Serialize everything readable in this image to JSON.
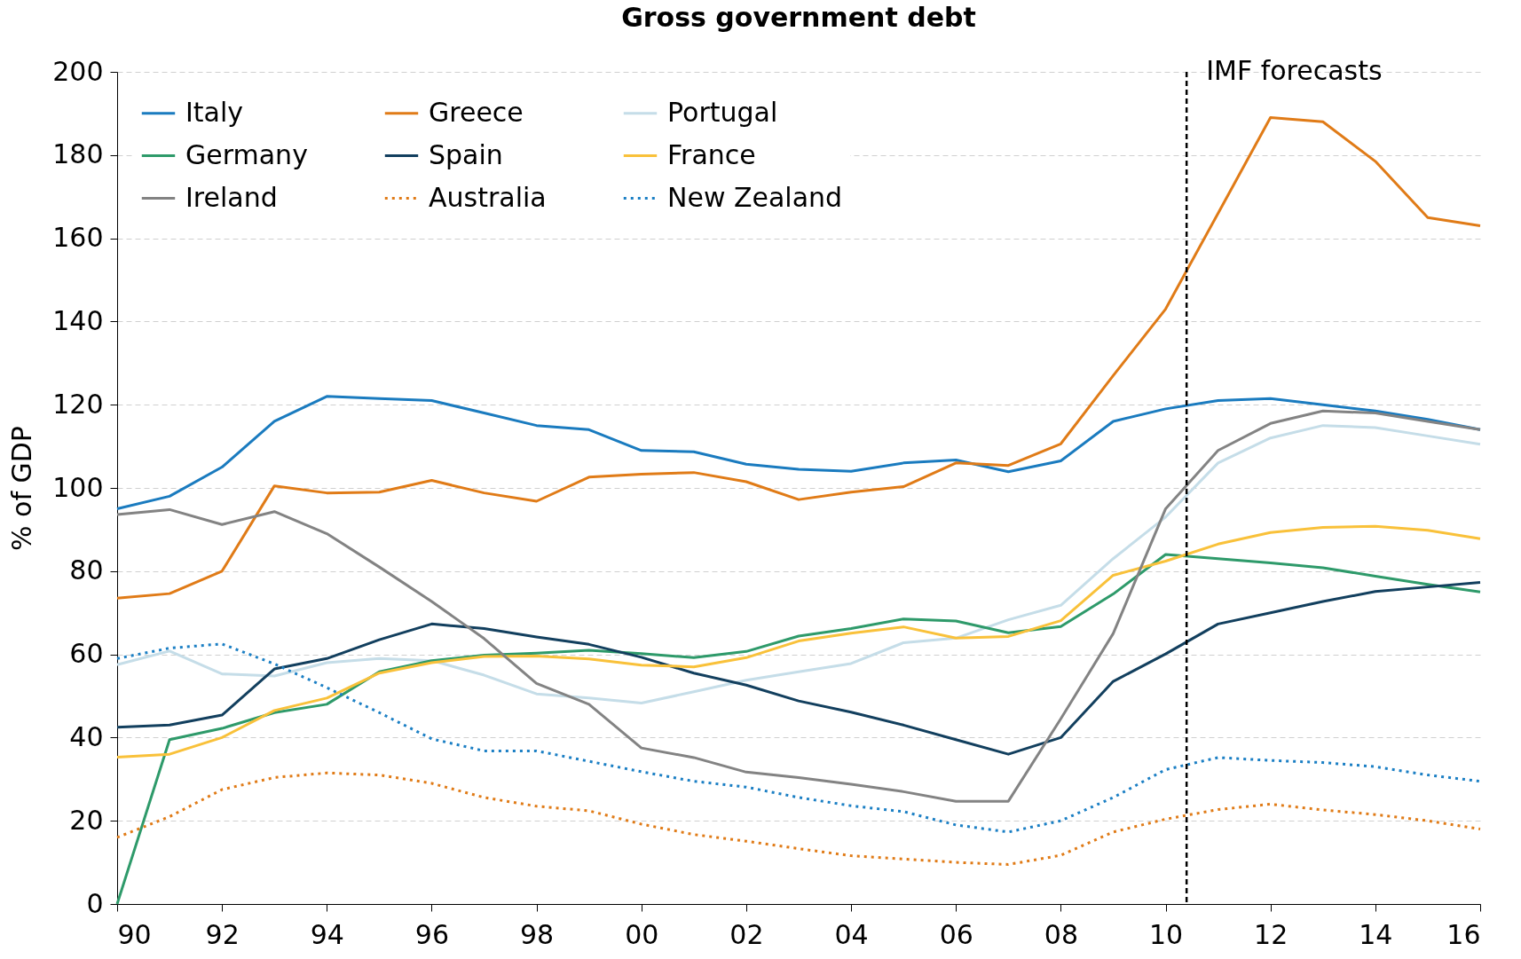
{
  "chart_data": {
    "type": "line",
    "title": "Gross government debt",
    "ylabel": "% of GDP",
    "x": [
      1990,
      1991,
      1992,
      1993,
      1994,
      1995,
      1996,
      1997,
      1998,
      1999,
      2000,
      2001,
      2002,
      2003,
      2004,
      2005,
      2006,
      2007,
      2008,
      2009,
      2010,
      2011,
      2012,
      2013,
      2014,
      2015,
      2016
    ],
    "xlim": [
      1990,
      2016
    ],
    "xticks": [
      {
        "value": 1990,
        "label": "90"
      },
      {
        "value": 1992,
        "label": "92"
      },
      {
        "value": 1994,
        "label": "94"
      },
      {
        "value": 1996,
        "label": "96"
      },
      {
        "value": 1998,
        "label": "98"
      },
      {
        "value": 2000,
        "label": "00"
      },
      {
        "value": 2002,
        "label": "02"
      },
      {
        "value": 2004,
        "label": "04"
      },
      {
        "value": 2006,
        "label": "06"
      },
      {
        "value": 2008,
        "label": "08"
      },
      {
        "value": 2010,
        "label": "10"
      },
      {
        "value": 2012,
        "label": "12"
      },
      {
        "value": 2014,
        "label": "14"
      },
      {
        "value": 2016,
        "label": "16"
      }
    ],
    "ylim": [
      0,
      200
    ],
    "yticks": [
      0,
      20,
      40,
      60,
      80,
      100,
      120,
      140,
      160,
      180,
      200
    ],
    "grid": "y",
    "legend": "top left",
    "line_style": "solid",
    "ref_lines": [
      {
        "axis": "x",
        "value": 2010.4,
        "label": "IMF forecasts",
        "color": "#000000",
        "line_style": "dashed"
      }
    ],
    "series": [
      {
        "name": "Italy",
        "color": "#1a7bbf",
        "values": [
          95,
          98,
          105,
          116,
          122,
          121.5,
          121,
          118,
          115,
          114,
          109,
          108.7,
          105.7,
          104.5,
          104,
          106,
          106.7,
          103.9,
          106.5,
          116,
          119,
          121,
          121.5,
          120,
          118.5,
          116.5,
          114
        ]
      },
      {
        "name": "Greece",
        "color": "#e07b17",
        "values": [
          73.5,
          74.6,
          80,
          100.5,
          98.8,
          99,
          101.8,
          98.8,
          96.8,
          102.6,
          103.3,
          103.7,
          101.5,
          97.2,
          99,
          100.3,
          106,
          105.4,
          110.6,
          127,
          143,
          166,
          189,
          188,
          178.5,
          165,
          163
        ]
      },
      {
        "name": "Portugal",
        "color": "#c5dde8",
        "values": [
          57.5,
          60.8,
          55.3,
          54.8,
          58,
          59,
          58.5,
          55,
          50.5,
          49.5,
          48.3,
          51,
          53.8,
          55.8,
          57.8,
          62.8,
          63.9,
          68.3,
          71.8,
          83,
          93,
          106,
          112,
          115,
          114.5,
          112.5,
          110.5
        ]
      },
      {
        "name": "Germany",
        "color": "#2e9a6a",
        "values": [
          0,
          39.5,
          42.2,
          46,
          48,
          55.8,
          58.5,
          59.8,
          60.3,
          61,
          60.2,
          59.2,
          60.7,
          64.4,
          66.2,
          68.5,
          68,
          65.2,
          66.7,
          74.5,
          84,
          83,
          82,
          80.8,
          78.8,
          76.8,
          75
        ]
      },
      {
        "name": "Spain",
        "color": "#123f5e",
        "values": [
          42.5,
          43,
          45.4,
          56.5,
          59,
          63.5,
          67.3,
          66.2,
          64.2,
          62.4,
          59.3,
          55.5,
          52.6,
          48.8,
          46.1,
          43,
          39.5,
          36,
          40,
          53.5,
          60.1,
          67.3,
          70,
          72.7,
          75.1,
          76.2,
          77.3
        ]
      },
      {
        "name": "France",
        "color": "#f9c13a",
        "values": [
          35.3,
          36,
          40,
          46.5,
          49.5,
          55.5,
          58,
          59.5,
          59.6,
          58.9,
          57.4,
          57,
          59.2,
          63.2,
          65.1,
          66.6,
          63.9,
          64.3,
          68.1,
          79,
          82.4,
          86.5,
          89.3,
          90.5,
          90.8,
          89.8,
          87.8
        ]
      },
      {
        "name": "Ireland",
        "color": "#838383",
        "values": [
          93.6,
          94.8,
          91.2,
          94.3,
          89,
          81,
          72.7,
          63.8,
          53,
          48,
          37.5,
          35.2,
          31.7,
          30.4,
          28.8,
          27,
          24.7,
          24.7,
          44.5,
          65,
          95,
          109,
          115.5,
          118.5,
          118,
          116,
          114
        ]
      },
      {
        "name": "Australia",
        "color": "#e07b17",
        "line_style": "dotted",
        "values": [
          16,
          21,
          27.5,
          30.4,
          31.5,
          31,
          29,
          25.6,
          23.5,
          22.4,
          19.2,
          16.7,
          15.1,
          13.3,
          11.6,
          10.8,
          10,
          9.5,
          11.7,
          17.3,
          20.4,
          22.7,
          24,
          22.6,
          21.5,
          20,
          18
        ]
      },
      {
        "name": "New Zealand",
        "color": "#1b7fc4",
        "line_style": "dotted",
        "values": [
          59,
          61.5,
          62.5,
          57.7,
          52,
          46,
          39.7,
          36.8,
          36.8,
          34.3,
          31.8,
          29.5,
          28.1,
          25.6,
          23.6,
          22.2,
          19,
          17.3,
          20,
          25.6,
          32.3,
          35.2,
          34.5,
          34,
          33,
          31,
          29.5
        ]
      }
    ]
  }
}
